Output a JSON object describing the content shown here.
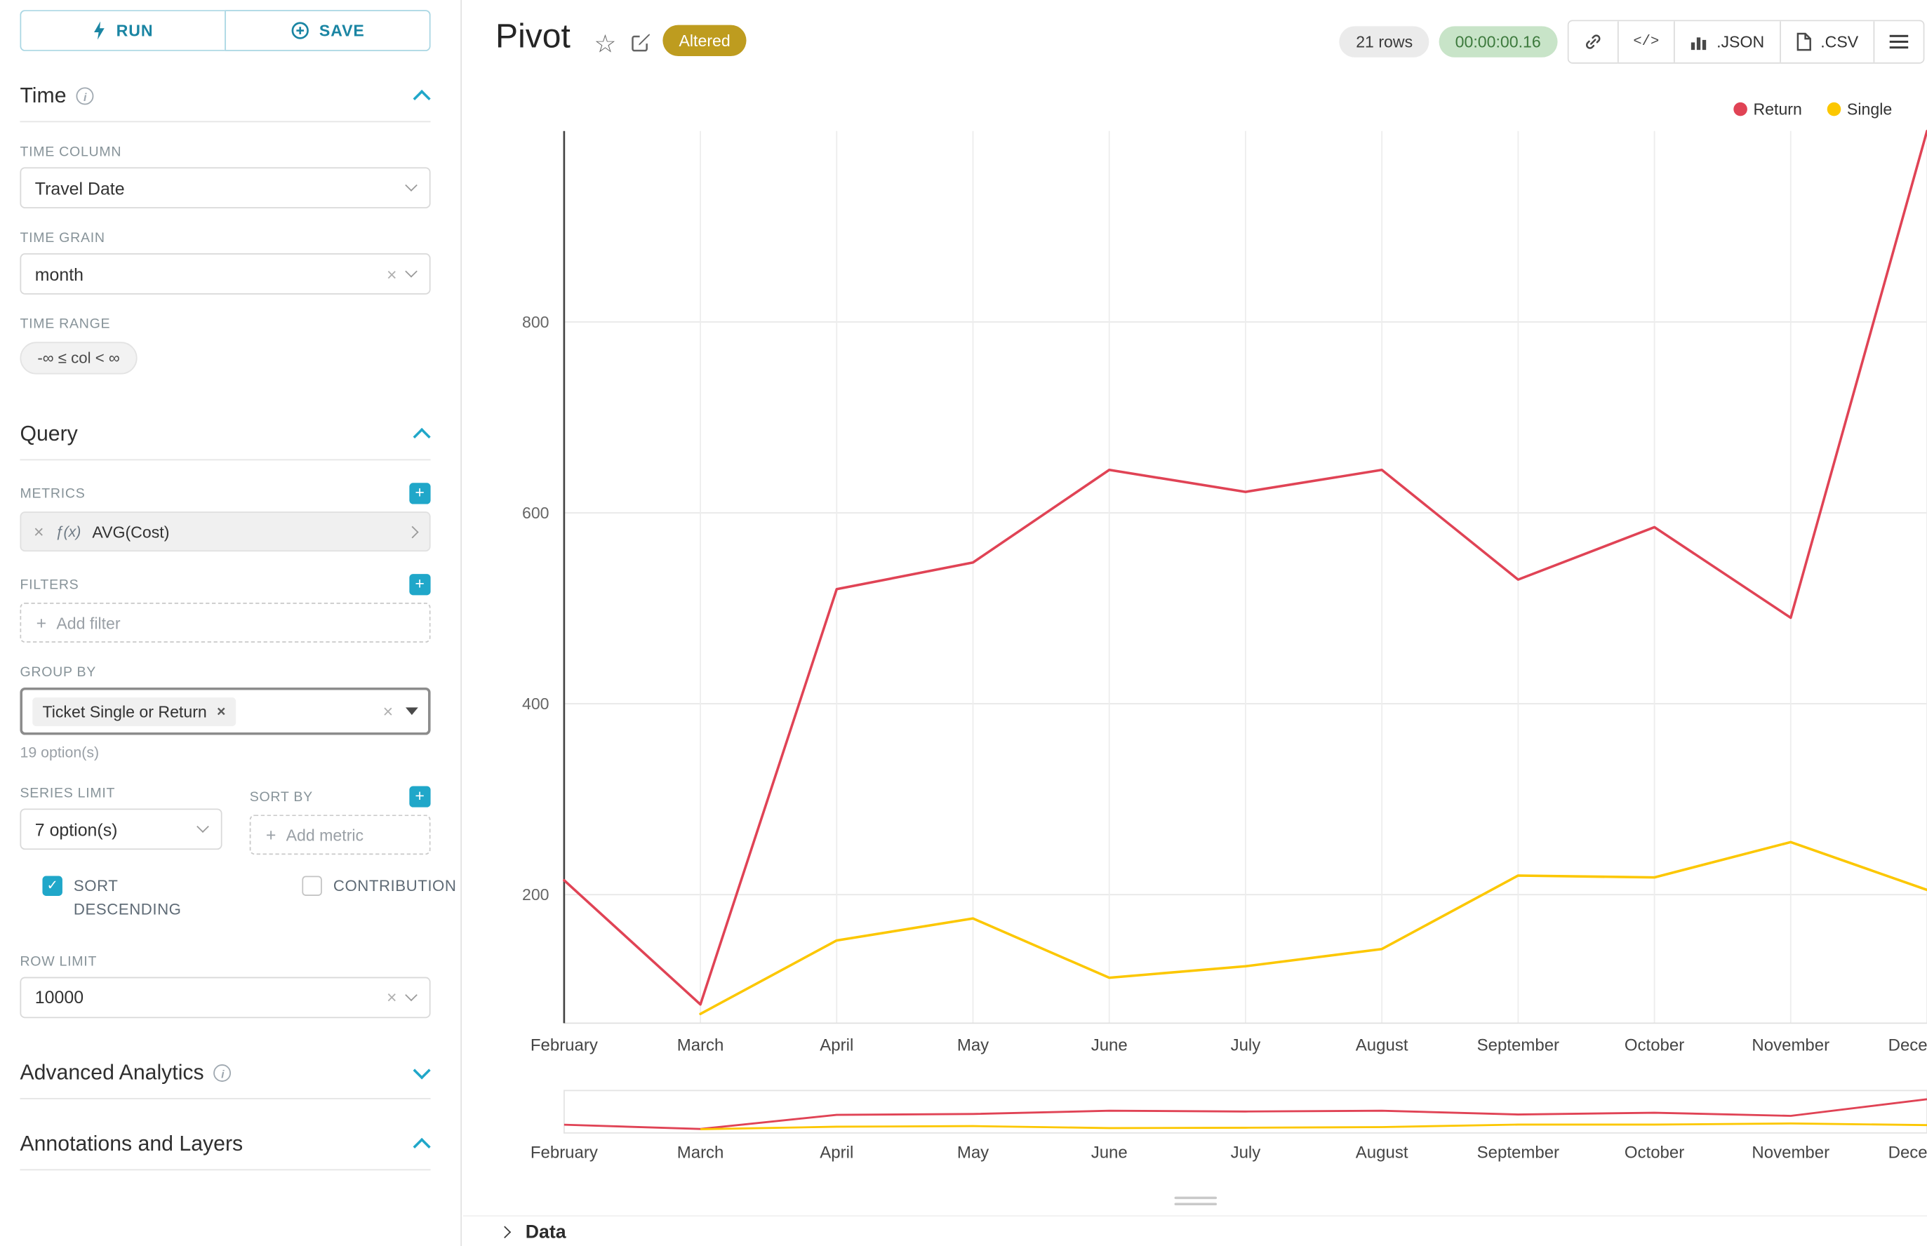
{
  "toolbar": {
    "run": "RUN",
    "save": "SAVE"
  },
  "panels": {
    "time": {
      "title": "Time",
      "time_column_label": "TIME COLUMN",
      "time_column_value": "Travel Date",
      "time_grain_label": "TIME GRAIN",
      "time_grain_value": "month",
      "time_range_label": "TIME RANGE",
      "time_range_value": "-∞ ≤ col < ∞"
    },
    "query": {
      "title": "Query",
      "metrics_label": "METRICS",
      "metric_fx": "ƒ(x)",
      "metric_value": "AVG(Cost)",
      "filters_label": "FILTERS",
      "add_filter_placeholder": "Add filter",
      "group_by_label": "GROUP BY",
      "group_by_value": "Ticket Single or Return",
      "group_by_hint": "19 option(s)",
      "series_limit_label": "SERIES LIMIT",
      "series_limit_value": "7 option(s)",
      "sort_by_label": "SORT BY",
      "add_metric_placeholder": "Add metric",
      "sort_descending_label": "SORT DESCENDING",
      "sort_descending_checked": true,
      "contribution_label": "CONTRIBUTION",
      "contribution_checked": false,
      "row_limit_label": "ROW LIMIT",
      "row_limit_value": "10000"
    },
    "advanced": {
      "title": "Advanced Analytics"
    },
    "annotations": {
      "title": "Annotations and Layers"
    }
  },
  "header": {
    "title": "Pivot",
    "altered": "Altered",
    "rows": "21 rows",
    "timer": "00:00:00.16",
    "json": ".JSON",
    "csv": ".CSV"
  },
  "footer": {
    "data": "Data"
  },
  "colors": {
    "accent": "#20A7C9",
    "altered_badge": "#BE9C1F",
    "timer_bg": "#C8E4C8",
    "timer_text": "#3D7A3D",
    "return_line": "#E04355",
    "single_line": "#FCC700"
  },
  "chart_data": {
    "type": "line",
    "title": "Pivot",
    "x": [
      "February",
      "March",
      "April",
      "May",
      "June",
      "July",
      "August",
      "September",
      "October",
      "November",
      "December"
    ],
    "series": [
      {
        "name": "Return",
        "color": "#E04355",
        "values": [
          215,
          85,
          520,
          548,
          645,
          622,
          645,
          530,
          585,
          490,
          1000
        ]
      },
      {
        "name": "Single",
        "color": "#FCC700",
        "values": [
          null,
          75,
          152,
          175,
          113,
          125,
          143,
          220,
          218,
          255,
          205
        ]
      }
    ],
    "xlabel": "",
    "ylabel": "",
    "yticks": [
      200,
      400,
      600,
      800
    ],
    "ylim": [
      60,
      1000
    ],
    "grid": true,
    "legend_position": "top-right",
    "has_overview_brush": true
  }
}
